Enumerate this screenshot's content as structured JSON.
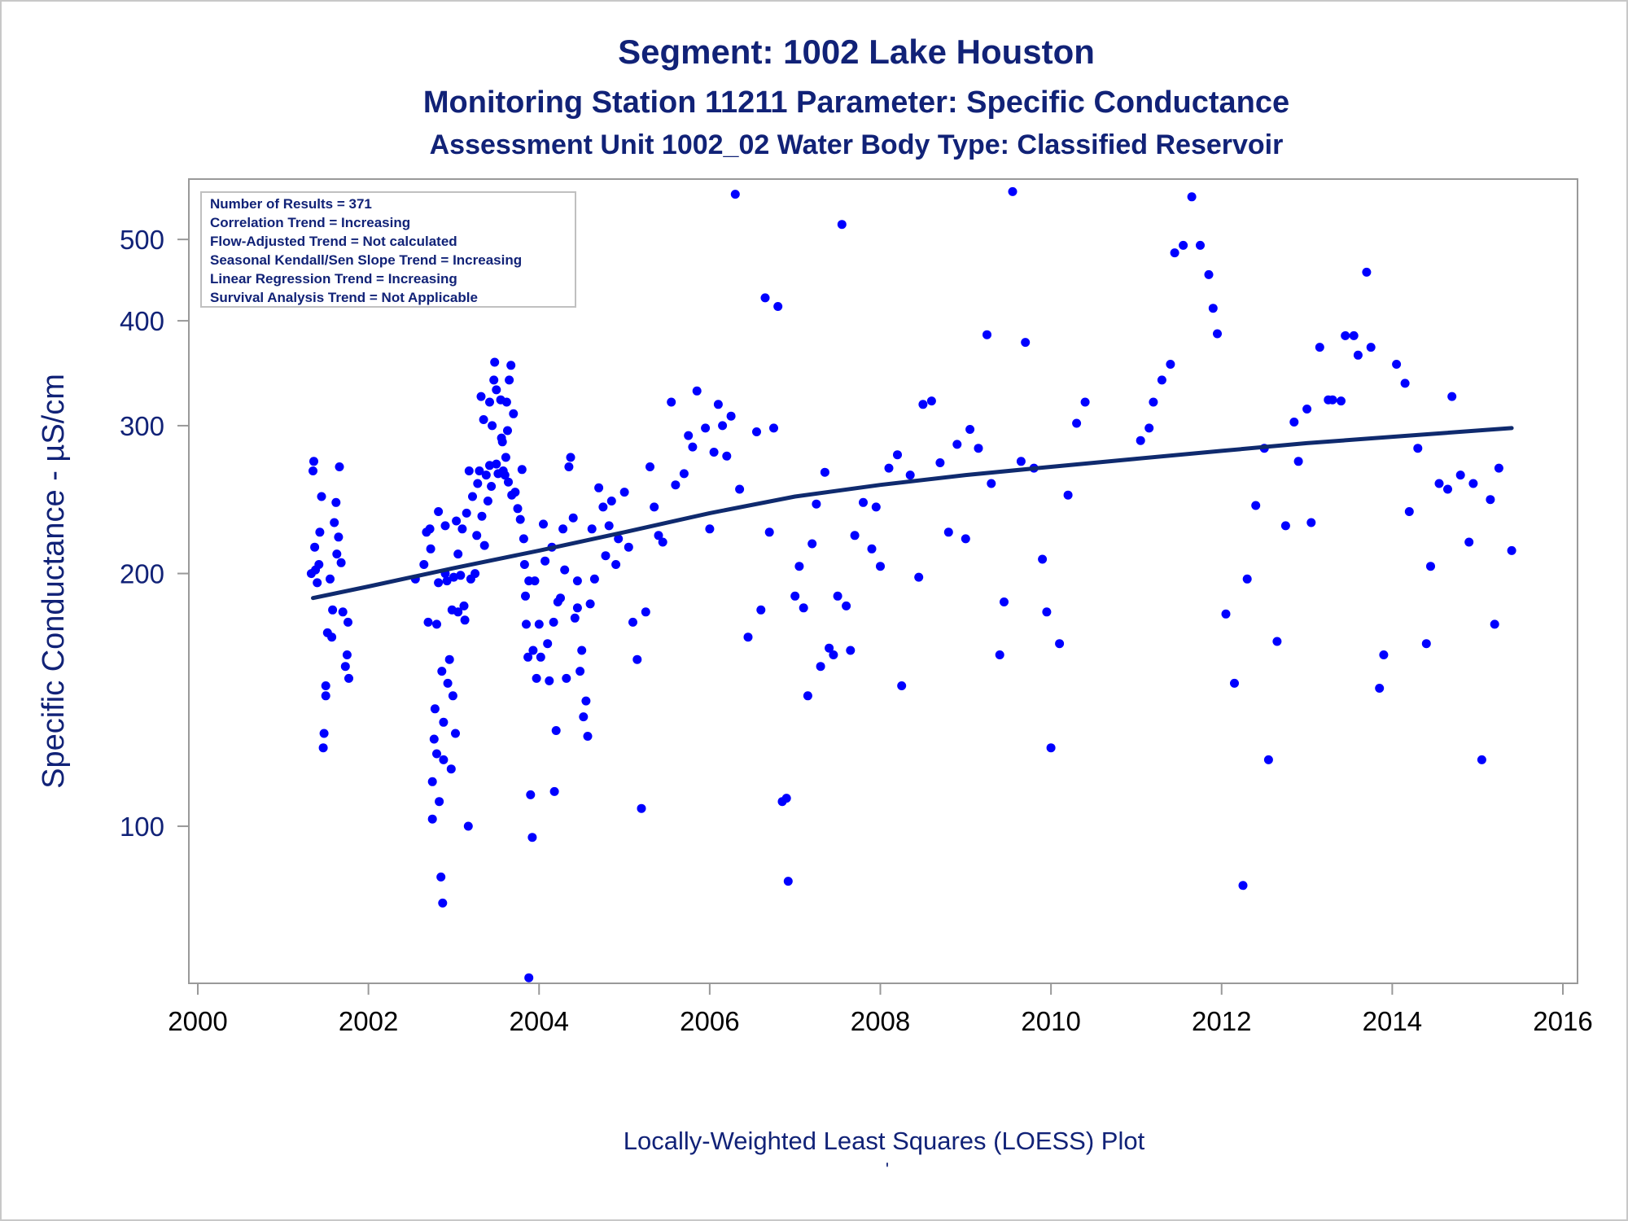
{
  "chart_data": {
    "type": "scatter",
    "title": "Segment: 1002  Lake Houston",
    "subtitle_1": "Monitoring Station 11211 Parameter: Specific Conductance",
    "subtitle_2": "Assessment Unit 1002_02   Water Body Type: Classified Reservoir",
    "ylabel": "Specific Conductance -  µS/cm",
    "footnote": "Locally-Weighted Least Squares (LOESS) Plot",
    "footnote_mark": "'",
    "y_scale": "log",
    "xlim": [
      2000,
      2016
    ],
    "ylim": [
      65,
      590
    ],
    "x_ticks": [
      2000,
      2002,
      2004,
      2006,
      2008,
      2010,
      2012,
      2014,
      2016
    ],
    "y_ticks": [
      100,
      200,
      300,
      400,
      500
    ],
    "grid": false,
    "colors": {
      "points": "#0000ff",
      "trend": "#0f2a6e",
      "text": "#112277",
      "axis": "#999999"
    },
    "stats_box": {
      "placement": "top-left",
      "lines": [
        "Number of Results = 371",
        "Correlation Trend = Increasing",
        "Flow-Adjusted Trend = Not calculated",
        "Seasonal Kendall/Sen Slope Trend = Increasing",
        "Linear Regression Trend = Increasing",
        "Survival Analysis Trend = Not Applicable"
      ]
    },
    "loess_trend": {
      "x": [
        2001.35,
        2002.0,
        2003.0,
        2004.0,
        2005.0,
        2006.0,
        2007.0,
        2008.0,
        2009.0,
        2010.0,
        2011.0,
        2012.0,
        2013.0,
        2014.0,
        2015.4
      ],
      "y": [
        187,
        193,
        203,
        213,
        224,
        236,
        247,
        255,
        262,
        268,
        274,
        280,
        286,
        291,
        298
      ]
    },
    "points": [
      [
        2001.33,
        200
      ],
      [
        2001.35,
        265
      ],
      [
        2001.36,
        272
      ],
      [
        2001.37,
        215
      ],
      [
        2001.38,
        202
      ],
      [
        2001.4,
        195
      ],
      [
        2001.42,
        205
      ],
      [
        2001.43,
        224
      ],
      [
        2001.45,
        247
      ],
      [
        2001.47,
        124
      ],
      [
        2001.48,
        129
      ],
      [
        2001.5,
        143
      ],
      [
        2001.5,
        147
      ],
      [
        2001.52,
        170
      ],
      [
        2001.55,
        197
      ],
      [
        2001.57,
        168
      ],
      [
        2001.58,
        181
      ],
      [
        2001.6,
        230
      ],
      [
        2001.62,
        243
      ],
      [
        2001.63,
        211
      ],
      [
        2001.65,
        221
      ],
      [
        2001.66,
        268
      ],
      [
        2001.68,
        206
      ],
      [
        2001.7,
        180
      ],
      [
        2001.73,
        155
      ],
      [
        2001.75,
        160
      ],
      [
        2001.77,
        150
      ],
      [
        2001.76,
        175
      ],
      [
        2002.55,
        197
      ],
      [
        2002.65,
        205
      ],
      [
        2002.68,
        224
      ],
      [
        2002.7,
        175
      ],
      [
        2002.72,
        226
      ],
      [
        2002.73,
        214
      ],
      [
        2002.75,
        102
      ],
      [
        2002.75,
        113
      ],
      [
        2002.77,
        127
      ],
      [
        2002.78,
        138
      ],
      [
        2002.8,
        122
      ],
      [
        2002.8,
        174
      ],
      [
        2002.82,
        195
      ],
      [
        2002.82,
        237
      ],
      [
        2002.83,
        107
      ],
      [
        2002.85,
        87
      ],
      [
        2002.86,
        153
      ],
      [
        2002.87,
        81
      ],
      [
        2002.88,
        133
      ],
      [
        2002.88,
        120
      ],
      [
        2002.9,
        200
      ],
      [
        2002.9,
        228
      ],
      [
        2002.92,
        196
      ],
      [
        2002.93,
        148
      ],
      [
        2002.95,
        158
      ],
      [
        2002.97,
        117
      ],
      [
        2002.98,
        181
      ],
      [
        2002.99,
        143
      ],
      [
        2003.0,
        198
      ],
      [
        2003.02,
        129
      ],
      [
        2003.03,
        231
      ],
      [
        2003.05,
        180
      ],
      [
        2003.05,
        211
      ],
      [
        2003.08,
        199
      ],
      [
        2003.1,
        226
      ],
      [
        2003.12,
        183
      ],
      [
        2003.13,
        176
      ],
      [
        2003.15,
        236
      ],
      [
        2003.17,
        100
      ],
      [
        2003.18,
        265
      ],
      [
        2003.2,
        197
      ],
      [
        2003.22,
        247
      ],
      [
        2003.25,
        200
      ],
      [
        2003.27,
        222
      ],
      [
        2003.28,
        256
      ],
      [
        2003.3,
        265
      ],
      [
        2003.32,
        325
      ],
      [
        2003.33,
        234
      ],
      [
        2003.35,
        305
      ],
      [
        2003.36,
        216
      ],
      [
        2003.38,
        262
      ],
      [
        2003.4,
        244
      ],
      [
        2003.42,
        269
      ],
      [
        2003.42,
        320
      ],
      [
        2003.44,
        254
      ],
      [
        2003.45,
        300
      ],
      [
        2003.47,
        340
      ],
      [
        2003.48,
        357
      ],
      [
        2003.5,
        270
      ],
      [
        2003.5,
        331
      ],
      [
        2003.52,
        263
      ],
      [
        2003.55,
        322
      ],
      [
        2003.56,
        290
      ],
      [
        2003.57,
        287
      ],
      [
        2003.58,
        265
      ],
      [
        2003.6,
        262
      ],
      [
        2003.61,
        275
      ],
      [
        2003.62,
        320
      ],
      [
        2003.63,
        296
      ],
      [
        2003.64,
        257
      ],
      [
        2003.65,
        340
      ],
      [
        2003.67,
        354
      ],
      [
        2003.68,
        248
      ],
      [
        2003.7,
        310
      ],
      [
        2003.72,
        250
      ],
      [
        2003.75,
        239
      ],
      [
        2003.78,
        232
      ],
      [
        2003.8,
        266
      ],
      [
        2003.82,
        220
      ],
      [
        2003.83,
        205
      ],
      [
        2003.84,
        188
      ],
      [
        2003.85,
        174
      ],
      [
        2003.87,
        159
      ],
      [
        2003.88,
        196
      ],
      [
        2003.9,
        109
      ],
      [
        2003.92,
        97
      ],
      [
        2003.93,
        162
      ],
      [
        2003.95,
        196
      ],
      [
        2003.97,
        150
      ],
      [
        2004.0,
        174
      ],
      [
        2004.02,
        159
      ],
      [
        2004.05,
        229
      ],
      [
        2004.07,
        207
      ],
      [
        2004.1,
        165
      ],
      [
        2004.12,
        149
      ],
      [
        2004.15,
        215
      ],
      [
        2004.17,
        175
      ],
      [
        2004.18,
        110
      ],
      [
        2004.2,
        130
      ],
      [
        2004.22,
        185
      ],
      [
        2004.25,
        187
      ],
      [
        2004.28,
        226
      ],
      [
        2004.3,
        202
      ],
      [
        2004.32,
        150
      ],
      [
        2004.35,
        268
      ],
      [
        2004.37,
        275
      ],
      [
        2004.4,
        233
      ],
      [
        2004.42,
        177
      ],
      [
        2004.45,
        182
      ],
      [
        2004.45,
        196
      ],
      [
        2004.48,
        153
      ],
      [
        2004.5,
        162
      ],
      [
        2004.52,
        135
      ],
      [
        2004.55,
        141
      ],
      [
        2004.57,
        128
      ],
      [
        2004.6,
        184
      ],
      [
        2004.62,
        226
      ],
      [
        2004.65,
        197
      ],
      [
        2004.7,
        253
      ],
      [
        2004.75,
        240
      ],
      [
        2004.78,
        210
      ],
      [
        2004.82,
        228
      ],
      [
        2004.85,
        244
      ],
      [
        2004.9,
        205
      ],
      [
        2004.93,
        220
      ],
      [
        2005.0,
        250
      ],
      [
        2005.05,
        215
      ],
      [
        2005.1,
        175
      ],
      [
        2005.15,
        158
      ],
      [
        2005.2,
        105
      ],
      [
        2005.25,
        180
      ],
      [
        2005.3,
        268
      ],
      [
        2005.35,
        240
      ],
      [
        2005.4,
        222
      ],
      [
        2005.45,
        218
      ],
      [
        2005.55,
        320
      ],
      [
        2005.6,
        255
      ],
      [
        2005.7,
        263
      ],
      [
        2005.75,
        292
      ],
      [
        2005.8,
        283
      ],
      [
        2005.85,
        330
      ],
      [
        2005.95,
        298
      ],
      [
        2006.0,
        226
      ],
      [
        2006.05,
        279
      ],
      [
        2006.1,
        318
      ],
      [
        2006.15,
        300
      ],
      [
        2006.2,
        276
      ],
      [
        2006.25,
        308
      ],
      [
        2006.3,
        566
      ],
      [
        2006.35,
        252
      ],
      [
        2006.45,
        168
      ],
      [
        2006.55,
        295
      ],
      [
        2006.6,
        181
      ],
      [
        2006.65,
        426
      ],
      [
        2006.7,
        224
      ],
      [
        2006.75,
        298
      ],
      [
        2006.8,
        416
      ],
      [
        2006.85,
        107
      ],
      [
        2006.9,
        108
      ],
      [
        2006.92,
        86
      ],
      [
        2007.0,
        188
      ],
      [
        2007.05,
        204
      ],
      [
        2007.1,
        182
      ],
      [
        2007.15,
        143
      ],
      [
        2007.2,
        217
      ],
      [
        2007.25,
        242
      ],
      [
        2007.3,
        155
      ],
      [
        2007.35,
        264
      ],
      [
        2007.4,
        163
      ],
      [
        2007.45,
        160
      ],
      [
        2007.5,
        188
      ],
      [
        2007.55,
        521
      ],
      [
        2007.6,
        183
      ],
      [
        2007.65,
        162
      ],
      [
        2007.7,
        222
      ],
      [
        2007.8,
        243
      ],
      [
        2007.9,
        214
      ],
      [
        2007.95,
        240
      ],
      [
        2008.0,
        204
      ],
      [
        2008.1,
        267
      ],
      [
        2008.2,
        277
      ],
      [
        2008.25,
        147
      ],
      [
        2008.35,
        262
      ],
      [
        2008.45,
        198
      ],
      [
        2008.5,
        318
      ],
      [
        2008.6,
        321
      ],
      [
        2008.7,
        271
      ],
      [
        2008.8,
        224
      ],
      [
        2008.9,
        285
      ],
      [
        2009.0,
        220
      ],
      [
        2009.05,
        297
      ],
      [
        2009.15,
        282
      ],
      [
        2009.25,
        385
      ],
      [
        2009.3,
        256
      ],
      [
        2009.4,
        160
      ],
      [
        2009.45,
        185
      ],
      [
        2009.55,
        570
      ],
      [
        2009.65,
        272
      ],
      [
        2009.7,
        377
      ],
      [
        2009.8,
        267
      ],
      [
        2009.9,
        208
      ],
      [
        2009.95,
        180
      ],
      [
        2010.0,
        124
      ],
      [
        2010.1,
        165
      ],
      [
        2010.2,
        248
      ],
      [
        2010.3,
        302
      ],
      [
        2010.4,
        320
      ],
      [
        2011.05,
        288
      ],
      [
        2011.15,
        298
      ],
      [
        2011.2,
        320
      ],
      [
        2011.3,
        340
      ],
      [
        2011.4,
        355
      ],
      [
        2011.45,
        482
      ],
      [
        2011.55,
        492
      ],
      [
        2011.65,
        562
      ],
      [
        2011.75,
        492
      ],
      [
        2011.85,
        454
      ],
      [
        2011.9,
        414
      ],
      [
        2011.95,
        386
      ],
      [
        2012.05,
        179
      ],
      [
        2012.15,
        148
      ],
      [
        2012.25,
        85
      ],
      [
        2012.3,
        197
      ],
      [
        2012.4,
        241
      ],
      [
        2012.5,
        282
      ],
      [
        2012.55,
        120
      ],
      [
        2012.65,
        166
      ],
      [
        2012.75,
        228
      ],
      [
        2012.85,
        303
      ],
      [
        2012.9,
        272
      ],
      [
        2013.0,
        314
      ],
      [
        2013.05,
        230
      ],
      [
        2013.15,
        372
      ],
      [
        2013.25,
        322
      ],
      [
        2013.3,
        322
      ],
      [
        2013.4,
        321
      ],
      [
        2013.45,
        384
      ],
      [
        2013.55,
        384
      ],
      [
        2013.6,
        364
      ],
      [
        2013.7,
        457
      ],
      [
        2013.75,
        372
      ],
      [
        2013.85,
        146
      ],
      [
        2013.9,
        160
      ],
      [
        2014.05,
        355
      ],
      [
        2014.15,
        337
      ],
      [
        2014.2,
        237
      ],
      [
        2014.3,
        282
      ],
      [
        2014.4,
        165
      ],
      [
        2014.45,
        204
      ],
      [
        2014.55,
        256
      ],
      [
        2014.65,
        252
      ],
      [
        2014.7,
        325
      ],
      [
        2014.8,
        262
      ],
      [
        2014.9,
        218
      ],
      [
        2014.95,
        256
      ],
      [
        2015.05,
        120
      ],
      [
        2015.15,
        245
      ],
      [
        2015.2,
        174
      ],
      [
        2015.25,
        267
      ],
      [
        2015.4,
        213
      ],
      [
        2003.88,
        66
      ]
    ]
  }
}
